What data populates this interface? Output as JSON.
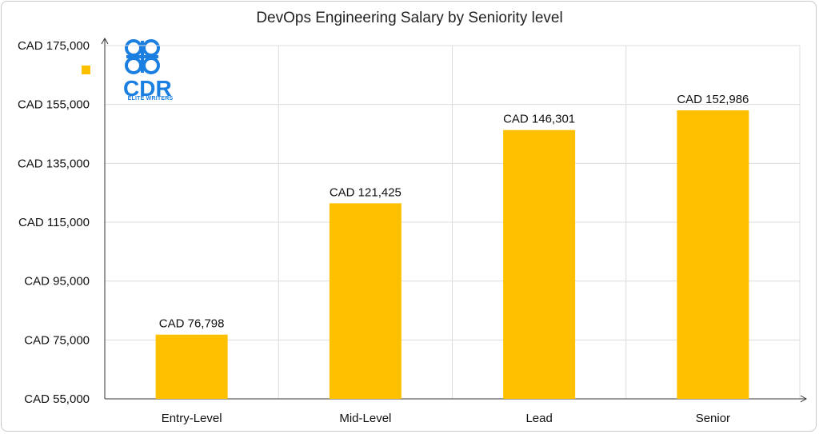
{
  "chart_data": {
    "type": "bar",
    "title": "DevOps Engineering Salary by Seniority level",
    "xlabel": "",
    "ylabel": "",
    "categories": [
      "Entry-Level",
      "Mid-Level",
      "Lead",
      "Senior"
    ],
    "values": [
      76798,
      121425,
      146301,
      152986
    ],
    "data_labels": [
      "CAD 76,798",
      "CAD 121,425",
      "CAD 146,301",
      "CAD 152,986"
    ],
    "ylim": [
      55000,
      175000
    ],
    "yticks": [
      55000,
      75000,
      95000,
      115000,
      135000,
      155000,
      175000
    ],
    "ytick_labels": [
      "CAD 55,000",
      "CAD 75,000",
      "CAD 95,000",
      "CAD 115,000",
      "CAD 135,000",
      "CAD 155,000",
      "CAD 175,000"
    ],
    "grid": true,
    "bar_color": "#FFC000"
  },
  "logo": {
    "text": "CDR",
    "subtext": "ELITE WRITERS",
    "color": "#1a7fe0"
  }
}
